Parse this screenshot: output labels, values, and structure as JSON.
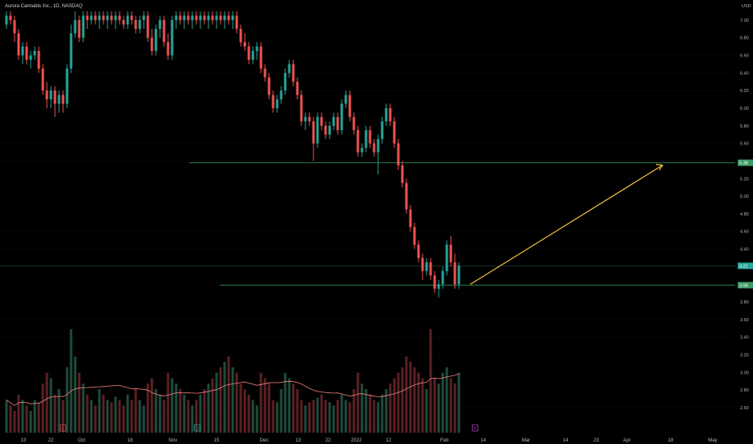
{
  "chart_data": {
    "type": "candlestick",
    "title": "Aurora Cannabis Inc., 1D, NASDAQ",
    "currency": "USD",
    "y_ticks": [
      7.0,
      6.8,
      6.6,
      6.4,
      6.2,
      6.0,
      5.8,
      5.6,
      5.4,
      5.2,
      5.0,
      4.8,
      4.6,
      4.4,
      4.2,
      4.0,
      3.8,
      3.6,
      3.4,
      3.2,
      3.0,
      2.8,
      2.6
    ],
    "y_tick_labels": [
      "7.00",
      "6.80",
      "6.60",
      "6.40",
      "6.20",
      "6.00",
      "5.80",
      "5.60",
      "5.40",
      "5.20",
      "5.00",
      "4.80",
      "4.60",
      "4.40",
      "4.20",
      "4.00",
      "3.80",
      "3.60",
      "3.40",
      "3.20",
      "3.00",
      "2.80",
      "2.60"
    ],
    "ylim": [
      2.48,
      7.1
    ],
    "x_tick_labels": [
      "13",
      "22",
      "Oct",
      "18",
      "Nov",
      "15",
      "Dec",
      "13",
      "22",
      "2022",
      "12",
      "Feb",
      "14",
      "Mar",
      "14",
      "23",
      "Apr",
      "18",
      "May"
    ],
    "price_markers": [
      {
        "label": "5.38",
        "value": 5.38,
        "color": "#3a9a63"
      },
      {
        "label": "4.21",
        "value": 4.21,
        "color": "#26a69a"
      },
      {
        "label": "3.99",
        "value": 3.99,
        "color": "#3a9a63"
      }
    ],
    "horizontal_lines": [
      5.38,
      3.99
    ],
    "current_price": 4.21,
    "projection": {
      "from_value": 3.99,
      "to_value": 5.38,
      "color": "#f5c242"
    },
    "event_badges": [
      {
        "label": "E",
        "color": "#e05050"
      },
      {
        "label": "D",
        "color": "#26a69a"
      },
      {
        "label": "E",
        "color": "#b040c8"
      }
    ],
    "candles": [
      [
        6.95,
        7.1,
        6.9,
        7.05
      ],
      [
        7.05,
        7.1,
        6.95,
        7.0
      ],
      [
        7.0,
        7.05,
        6.75,
        6.85
      ],
      [
        6.85,
        6.9,
        6.55,
        6.6
      ],
      [
        6.6,
        6.75,
        6.5,
        6.7
      ],
      [
        6.7,
        6.75,
        6.5,
        6.55
      ],
      [
        6.55,
        6.65,
        6.45,
        6.6
      ],
      [
        6.6,
        6.7,
        6.55,
        6.65
      ],
      [
        6.65,
        6.7,
        6.4,
        6.45
      ],
      [
        6.45,
        6.5,
        6.15,
        6.2
      ],
      [
        6.2,
        6.3,
        6.0,
        6.1
      ],
      [
        6.1,
        6.25,
        6.0,
        6.2
      ],
      [
        6.2,
        6.25,
        5.9,
        6.05
      ],
      [
        6.05,
        6.2,
        5.95,
        6.15
      ],
      [
        6.15,
        6.2,
        5.95,
        6.05
      ],
      [
        6.05,
        6.5,
        6.0,
        6.45
      ],
      [
        6.45,
        6.95,
        6.4,
        6.85
      ],
      [
        6.85,
        7.1,
        6.8,
        7.0
      ],
      [
        7.0,
        7.05,
        6.75,
        6.8
      ],
      [
        6.8,
        7.1,
        6.75,
        7.05
      ],
      [
        7.05,
        7.1,
        6.9,
        7.0
      ],
      [
        7.0,
        7.1,
        6.95,
        7.05
      ],
      [
        7.05,
        7.1,
        6.95,
        7.0
      ],
      [
        7.0,
        7.1,
        6.9,
        7.05
      ],
      [
        7.05,
        7.1,
        6.95,
        7.0
      ],
      [
        7.0,
        7.1,
        6.9,
        7.05
      ],
      [
        7.05,
        7.1,
        6.95,
        7.0
      ],
      [
        7.0,
        7.1,
        6.9,
        7.05
      ],
      [
        7.05,
        7.1,
        6.95,
        7.0
      ],
      [
        7.0,
        7.05,
        6.9,
        6.95
      ],
      [
        6.95,
        7.1,
        6.9,
        7.05
      ],
      [
        7.05,
        7.1,
        6.95,
        7.0
      ],
      [
        7.0,
        7.05,
        6.85,
        6.9
      ],
      [
        6.9,
        7.05,
        6.85,
        7.0
      ],
      [
        7.0,
        7.1,
        6.9,
        7.05
      ],
      [
        7.05,
        7.1,
        6.75,
        6.8
      ],
      [
        6.8,
        6.9,
        6.6,
        6.65
      ],
      [
        6.65,
        6.95,
        6.6,
        6.9
      ],
      [
        6.9,
        7.05,
        6.8,
        7.0
      ],
      [
        7.0,
        7.05,
        6.7,
        6.75
      ],
      [
        6.75,
        6.85,
        6.55,
        6.6
      ],
      [
        6.6,
        7.05,
        6.55,
        7.0
      ],
      [
        7.0,
        7.1,
        6.9,
        7.05
      ],
      [
        7.05,
        7.1,
        6.95,
        7.0
      ],
      [
        7.0,
        7.1,
        6.9,
        7.05
      ],
      [
        7.05,
        7.1,
        6.95,
        7.0
      ],
      [
        7.0,
        7.1,
        6.9,
        7.05
      ],
      [
        7.05,
        7.1,
        6.95,
        7.0
      ],
      [
        7.0,
        7.1,
        6.9,
        7.05
      ],
      [
        7.05,
        7.1,
        6.95,
        7.0
      ],
      [
        7.0,
        7.1,
        6.9,
        7.05
      ],
      [
        7.05,
        7.1,
        6.95,
        7.0
      ],
      [
        7.0,
        7.1,
        6.9,
        7.05
      ],
      [
        7.05,
        7.1,
        6.95,
        7.0
      ],
      [
        7.0,
        7.1,
        6.9,
        7.05
      ],
      [
        7.05,
        7.1,
        6.95,
        7.0
      ],
      [
        7.0,
        7.1,
        6.9,
        7.05
      ],
      [
        7.05,
        7.1,
        6.85,
        6.9
      ],
      [
        6.9,
        6.95,
        6.7,
        6.75
      ],
      [
        6.75,
        6.85,
        6.65,
        6.7
      ],
      [
        6.7,
        6.75,
        6.5,
        6.55
      ],
      [
        6.55,
        6.7,
        6.5,
        6.65
      ],
      [
        6.65,
        6.75,
        6.55,
        6.7
      ],
      [
        6.7,
        6.75,
        6.4,
        6.45
      ],
      [
        6.45,
        6.5,
        6.3,
        6.35
      ],
      [
        6.35,
        6.4,
        6.1,
        6.15
      ],
      [
        6.15,
        6.2,
        5.95,
        6.0
      ],
      [
        6.0,
        6.15,
        5.95,
        6.1
      ],
      [
        6.1,
        6.25,
        6.05,
        6.2
      ],
      [
        6.2,
        6.45,
        6.15,
        6.4
      ],
      [
        6.4,
        6.55,
        6.35,
        6.5
      ],
      [
        6.5,
        6.55,
        6.25,
        6.3
      ],
      [
        6.3,
        6.35,
        6.1,
        6.15
      ],
      [
        6.15,
        6.2,
        5.8,
        5.85
      ],
      [
        5.85,
        5.95,
        5.75,
        5.9
      ],
      [
        5.9,
        5.95,
        5.8,
        5.85
      ],
      [
        5.85,
        5.9,
        5.4,
        5.6
      ],
      [
        5.6,
        5.95,
        5.55,
        5.9
      ],
      [
        5.9,
        5.95,
        5.75,
        5.8
      ],
      [
        5.8,
        5.85,
        5.65,
        5.7
      ],
      [
        5.7,
        5.85,
        5.65,
        5.8
      ],
      [
        5.8,
        5.95,
        5.75,
        5.9
      ],
      [
        5.9,
        5.95,
        5.7,
        5.75
      ],
      [
        5.75,
        6.1,
        5.7,
        6.05
      ],
      [
        6.05,
        6.2,
        6.0,
        6.15
      ],
      [
        6.15,
        6.2,
        5.85,
        5.9
      ],
      [
        5.9,
        5.95,
        5.7,
        5.75
      ],
      [
        5.75,
        5.8,
        5.45,
        5.5
      ],
      [
        5.5,
        5.6,
        5.45,
        5.55
      ],
      [
        5.55,
        5.8,
        5.5,
        5.75
      ],
      [
        5.75,
        5.8,
        5.55,
        5.6
      ],
      [
        5.6,
        5.65,
        5.45,
        5.5
      ],
      [
        5.5,
        5.7,
        5.25,
        5.65
      ],
      [
        5.65,
        5.9,
        5.6,
        5.85
      ],
      [
        5.85,
        6.05,
        5.8,
        6.0
      ],
      [
        6.0,
        6.05,
        5.8,
        5.85
      ],
      [
        5.85,
        5.9,
        5.55,
        5.6
      ],
      [
        5.6,
        5.65,
        5.3,
        5.35
      ],
      [
        5.35,
        5.4,
        5.1,
        5.15
      ],
      [
        5.15,
        5.2,
        4.8,
        4.85
      ],
      [
        4.85,
        4.9,
        4.6,
        4.65
      ],
      [
        4.65,
        4.7,
        4.4,
        4.45
      ],
      [
        4.45,
        4.5,
        4.25,
        4.3
      ],
      [
        4.3,
        4.35,
        4.05,
        4.15
      ],
      [
        4.15,
        4.3,
        4.1,
        4.25
      ],
      [
        4.25,
        4.3,
        4.05,
        4.1
      ],
      [
        4.1,
        4.15,
        3.9,
        3.95
      ],
      [
        3.95,
        4.05,
        3.85,
        4.0
      ],
      [
        4.0,
        4.2,
        3.95,
        4.15
      ],
      [
        4.15,
        4.5,
        4.1,
        4.45
      ],
      [
        4.45,
        4.55,
        4.2,
        4.25
      ],
      [
        4.25,
        4.35,
        3.95,
        4.0
      ],
      [
        4.0,
        4.25,
        3.95,
        4.21
      ]
    ],
    "volume": [
      0.3,
      0.25,
      0.2,
      0.35,
      0.3,
      0.25,
      0.2,
      0.3,
      0.28,
      0.45,
      0.55,
      0.5,
      0.35,
      0.4,
      0.3,
      0.6,
      0.95,
      0.7,
      0.55,
      0.45,
      0.35,
      0.3,
      0.25,
      0.4,
      0.35,
      0.3,
      0.28,
      0.33,
      0.3,
      0.25,
      0.35,
      0.3,
      0.4,
      0.3,
      0.25,
      0.45,
      0.5,
      0.4,
      0.35,
      0.3,
      0.55,
      0.5,
      0.45,
      0.4,
      0.35,
      0.3,
      0.25,
      0.3,
      0.35,
      0.4,
      0.45,
      0.5,
      0.55,
      0.6,
      0.65,
      0.7,
      0.6,
      0.55,
      0.45,
      0.4,
      0.35,
      0.3,
      0.25,
      0.55,
      0.5,
      0.45,
      0.3,
      0.28,
      0.4,
      0.55,
      0.5,
      0.45,
      0.4,
      0.3,
      0.25,
      0.28,
      0.3,
      0.32,
      0.35,
      0.3,
      0.28,
      0.25,
      0.3,
      0.35,
      0.3,
      0.28,
      0.4,
      0.55,
      0.45,
      0.4,
      0.35,
      0.3,
      0.28,
      0.35,
      0.4,
      0.45,
      0.5,
      0.55,
      0.6,
      0.7,
      0.65,
      0.6,
      0.55,
      0.5,
      0.4,
      0.95,
      0.5,
      0.45,
      0.55,
      0.6,
      0.5,
      0.45,
      0.55
    ],
    "volume_ma": [
      0.55
    ]
  }
}
